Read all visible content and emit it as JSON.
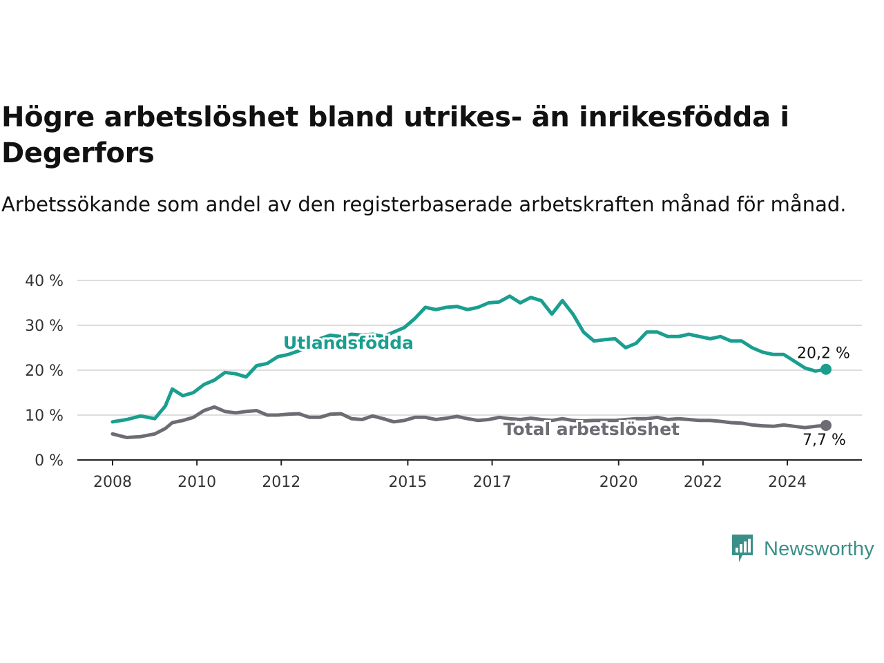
{
  "header": {
    "title": "Högre arbetslöshet bland utrikes- än inrikesfödda i Degerfors",
    "subtitle": "Arbetssökande som andel av den registerbaserade arbetskraften månad för månad."
  },
  "brand": {
    "name": "Newsworthy",
    "icon": "newsworthy-logo-icon",
    "color": "#3a8f88"
  },
  "chart_data": {
    "type": "line",
    "x_ticks": [
      "2008",
      "2010",
      "2012",
      "2015",
      "2017",
      "2020",
      "2022",
      "2024"
    ],
    "y_ticks": [
      "0 %",
      "10 %",
      "20 %",
      "30 %",
      "40 %"
    ],
    "ylim": [
      0,
      40
    ],
    "xlim": [
      "2008-01",
      "2024-12"
    ],
    "grid": true,
    "series": [
      {
        "name": "Utlandsfödda",
        "color": "#1a9e8f",
        "end_label": "20,2 %",
        "points": [
          [
            "2008-01",
            8.5
          ],
          [
            "2008-05",
            9.0
          ],
          [
            "2008-09",
            9.8
          ],
          [
            "2009-01",
            9.2
          ],
          [
            "2009-04",
            12.0
          ],
          [
            "2009-06",
            15.8
          ],
          [
            "2009-09",
            14.3
          ],
          [
            "2009-12",
            15.0
          ],
          [
            "2010-03",
            16.8
          ],
          [
            "2010-06",
            17.8
          ],
          [
            "2010-09",
            19.5
          ],
          [
            "2010-12",
            19.2
          ],
          [
            "2011-03",
            18.5
          ],
          [
            "2011-06",
            21.0
          ],
          [
            "2011-09",
            21.5
          ],
          [
            "2011-12",
            23.0
          ],
          [
            "2012-03",
            23.5
          ],
          [
            "2012-06",
            24.3
          ],
          [
            "2012-09",
            25.5
          ],
          [
            "2012-12",
            27.0
          ],
          [
            "2013-03",
            27.8
          ],
          [
            "2013-06",
            27.5
          ],
          [
            "2013-09",
            28.0
          ],
          [
            "2013-12",
            27.8
          ],
          [
            "2014-03",
            28.0
          ],
          [
            "2014-06",
            27.5
          ],
          [
            "2014-09",
            28.5
          ],
          [
            "2014-12",
            29.5
          ],
          [
            "2015-03",
            31.5
          ],
          [
            "2015-06",
            34.0
          ],
          [
            "2015-09",
            33.5
          ],
          [
            "2015-12",
            34.0
          ],
          [
            "2016-03",
            34.2
          ],
          [
            "2016-06",
            33.5
          ],
          [
            "2016-09",
            34.0
          ],
          [
            "2016-12",
            35.0
          ],
          [
            "2017-03",
            35.2
          ],
          [
            "2017-06",
            36.5
          ],
          [
            "2017-09",
            35.0
          ],
          [
            "2017-12",
            36.2
          ],
          [
            "2018-03",
            35.5
          ],
          [
            "2018-06",
            32.5
          ],
          [
            "2018-09",
            35.5
          ],
          [
            "2018-12",
            32.5
          ],
          [
            "2019-03",
            28.5
          ],
          [
            "2019-06",
            26.5
          ],
          [
            "2019-09",
            26.8
          ],
          [
            "2019-12",
            27.0
          ],
          [
            "2020-03",
            25.0
          ],
          [
            "2020-06",
            26.0
          ],
          [
            "2020-09",
            28.5
          ],
          [
            "2020-12",
            28.5
          ],
          [
            "2021-03",
            27.5
          ],
          [
            "2021-06",
            27.5
          ],
          [
            "2021-09",
            28.0
          ],
          [
            "2021-12",
            27.5
          ],
          [
            "2022-03",
            27.0
          ],
          [
            "2022-06",
            27.5
          ],
          [
            "2022-09",
            26.5
          ],
          [
            "2022-12",
            26.5
          ],
          [
            "2023-03",
            25.0
          ],
          [
            "2023-06",
            24.0
          ],
          [
            "2023-09",
            23.5
          ],
          [
            "2023-12",
            23.5
          ],
          [
            "2024-03",
            22.0
          ],
          [
            "2024-06",
            20.5
          ],
          [
            "2024-09",
            19.8
          ],
          [
            "2024-12",
            20.2
          ]
        ]
      },
      {
        "name": "Total arbetslöshet",
        "color": "#6e6c73",
        "end_label": "7,7 %",
        "points": [
          [
            "2008-01",
            5.8
          ],
          [
            "2008-05",
            5.0
          ],
          [
            "2008-09",
            5.2
          ],
          [
            "2009-01",
            5.8
          ],
          [
            "2009-04",
            7.0
          ],
          [
            "2009-06",
            8.3
          ],
          [
            "2009-09",
            8.8
          ],
          [
            "2009-12",
            9.5
          ],
          [
            "2010-03",
            11.0
          ],
          [
            "2010-06",
            11.8
          ],
          [
            "2010-09",
            10.8
          ],
          [
            "2010-12",
            10.5
          ],
          [
            "2011-03",
            10.8
          ],
          [
            "2011-06",
            11.0
          ],
          [
            "2011-09",
            10.0
          ],
          [
            "2011-12",
            10.0
          ],
          [
            "2012-03",
            10.2
          ],
          [
            "2012-06",
            10.3
          ],
          [
            "2012-09",
            9.5
          ],
          [
            "2012-12",
            9.5
          ],
          [
            "2013-03",
            10.2
          ],
          [
            "2013-06",
            10.3
          ],
          [
            "2013-09",
            9.2
          ],
          [
            "2013-12",
            9.0
          ],
          [
            "2014-03",
            9.8
          ],
          [
            "2014-06",
            9.2
          ],
          [
            "2014-09",
            8.5
          ],
          [
            "2014-12",
            8.8
          ],
          [
            "2015-03",
            9.5
          ],
          [
            "2015-06",
            9.5
          ],
          [
            "2015-09",
            9.0
          ],
          [
            "2015-12",
            9.3
          ],
          [
            "2016-03",
            9.7
          ],
          [
            "2016-06",
            9.2
          ],
          [
            "2016-09",
            8.8
          ],
          [
            "2016-12",
            9.0
          ],
          [
            "2017-03",
            9.5
          ],
          [
            "2017-06",
            9.2
          ],
          [
            "2017-09",
            9.0
          ],
          [
            "2017-12",
            9.3
          ],
          [
            "2018-03",
            9.0
          ],
          [
            "2018-06",
            8.8
          ],
          [
            "2018-09",
            9.2
          ],
          [
            "2018-12",
            8.8
          ],
          [
            "2019-03",
            8.7
          ],
          [
            "2019-06",
            8.8
          ],
          [
            "2019-09",
            8.8
          ],
          [
            "2019-12",
            8.8
          ],
          [
            "2020-03",
            9.0
          ],
          [
            "2020-06",
            9.2
          ],
          [
            "2020-09",
            9.2
          ],
          [
            "2020-12",
            9.5
          ],
          [
            "2021-03",
            9.0
          ],
          [
            "2021-06",
            9.2
          ],
          [
            "2021-09",
            9.0
          ],
          [
            "2021-12",
            8.8
          ],
          [
            "2022-03",
            8.8
          ],
          [
            "2022-06",
            8.6
          ],
          [
            "2022-09",
            8.3
          ],
          [
            "2022-12",
            8.2
          ],
          [
            "2023-03",
            7.8
          ],
          [
            "2023-06",
            7.6
          ],
          [
            "2023-09",
            7.5
          ],
          [
            "2023-12",
            7.8
          ],
          [
            "2024-03",
            7.5
          ],
          [
            "2024-06",
            7.2
          ],
          [
            "2024-09",
            7.5
          ],
          [
            "2024-12",
            7.7
          ]
        ]
      }
    ]
  }
}
